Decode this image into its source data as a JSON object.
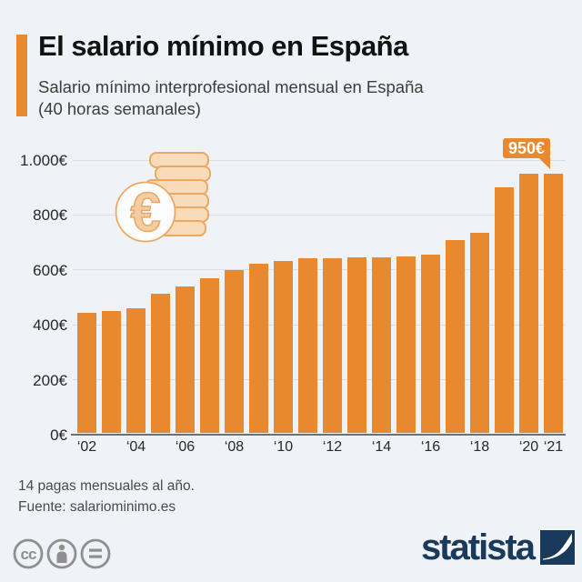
{
  "header": {
    "title": "El salario mínimo en España",
    "subtitle": "Salario mínimo interprofesional mensual en España\n(40 horas semanales)"
  },
  "chart_data": {
    "type": "bar",
    "title": "El salario mínimo en España",
    "subtitle": "Salario mínimo interprofesional mensual en España (40 horas semanales)",
    "categories": [
      "2002",
      "2003",
      "2004",
      "2005",
      "2006",
      "2007",
      "2008",
      "2009",
      "2010",
      "2011",
      "2012",
      "2013",
      "2014",
      "2015",
      "2016",
      "2017",
      "2018",
      "2019",
      "2020",
      "2021"
    ],
    "values": [
      442.2,
      451.2,
      460.5,
      513,
      540.9,
      570.6,
      600,
      624,
      633.3,
      641.4,
      641.4,
      645.3,
      645.3,
      648.6,
      655.2,
      707.7,
      735.9,
      900,
      950,
      950
    ],
    "x_tick_labels": [
      "‘02",
      "",
      "‘04",
      "",
      "‘06",
      "",
      "‘08",
      "",
      "‘10",
      "",
      "‘12",
      "",
      "‘14",
      "",
      "‘16",
      "",
      "‘18",
      "",
      "‘20",
      "‘21"
    ],
    "y_ticks": [
      0,
      200,
      400,
      600,
      800,
      1000
    ],
    "y_tick_labels": [
      "0€",
      "200€",
      "400€",
      "600€",
      "800€",
      "1.000€"
    ],
    "ylim": [
      0,
      1000
    ],
    "xlabel": "",
    "ylabel": "",
    "grid": true,
    "legend_position": "none",
    "bar_color": "#E8882F",
    "annotation": {
      "text": "950€",
      "bar_index": 19
    }
  },
  "footer": {
    "note": "14 pagas mensuales al año.",
    "source": "Fuente: salariominimo.es",
    "brand": "statista"
  },
  "icons": {
    "euro_coins": "euro-coins-icon",
    "cc": "cc-icon",
    "attribution": "attribution-icon",
    "equals": "no-derivatives-icon",
    "statista_mark": "statista-logo-mark"
  },
  "colors": {
    "accent_orange": "#E8882F",
    "background": "#EFF2F6",
    "brand_navy": "#1A3A5C",
    "icon_fill": "#F8DBB9",
    "icon_stroke": "#EFA760"
  }
}
